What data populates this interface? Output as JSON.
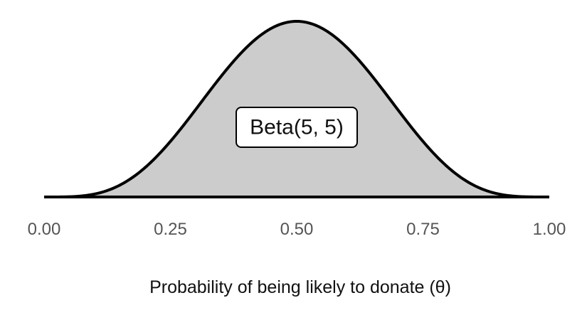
{
  "chart_data": {
    "type": "area",
    "distribution": "beta",
    "alpha": 5,
    "beta": 5,
    "title": "",
    "xlabel": "Probability of being likely to donate (θ)",
    "ylabel": "",
    "xlim": [
      0,
      1
    ],
    "x_ticks": [
      0,
      0.25,
      0.5,
      0.75,
      1
    ],
    "x_tick_labels": [
      "0.00",
      "0.25",
      "0.50",
      "0.75",
      "1.00"
    ],
    "annotation": {
      "text": "Beta(5, 5)",
      "x": 0.5
    },
    "fill_color": "#cccccc",
    "line_color": "#000000",
    "grid": false,
    "legend": "none"
  }
}
